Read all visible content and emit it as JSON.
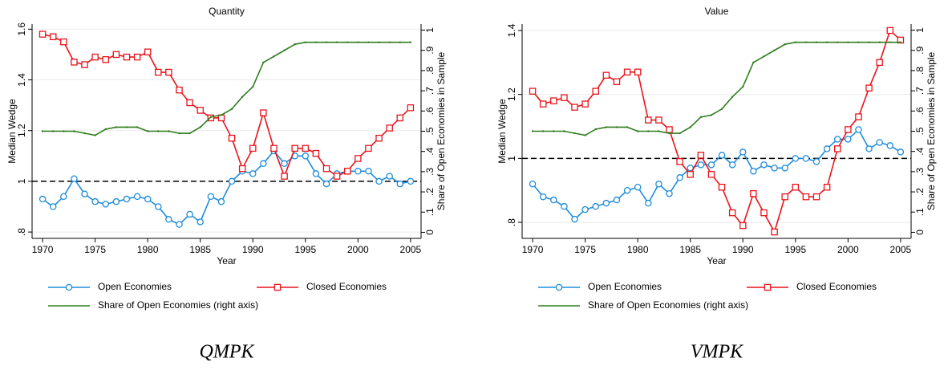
{
  "chart_data": [
    {
      "type": "line",
      "title": "Quantity",
      "caption": "QMPK",
      "xlabel": "Year",
      "ylabel": "Median Wedge",
      "y2label": "Share of Open Economies in Sample",
      "x": [
        1970,
        1971,
        1972,
        1973,
        1974,
        1975,
        1976,
        1977,
        1978,
        1979,
        1980,
        1981,
        1982,
        1983,
        1984,
        1985,
        1986,
        1987,
        1988,
        1989,
        1990,
        1991,
        1992,
        1993,
        1994,
        1995,
        1996,
        1997,
        1998,
        1999,
        2000,
        2001,
        2002,
        2003,
        2004,
        2005
      ],
      "xlim": [
        1969,
        2006
      ],
      "xticks": [
        1970,
        1975,
        1980,
        1985,
        1990,
        1995,
        2000,
        2005
      ],
      "ylim": [
        0.775,
        1.62
      ],
      "yticks": [
        {
          "value": 0.8,
          "label": ".8"
        },
        1,
        1.2,
        1.4,
        1.6
      ],
      "y2lim": [
        -0.03,
        1.03
      ],
      "y2ticks": [
        0,
        {
          "value": 0.1,
          "label": ".1"
        },
        {
          "value": 0.2,
          "label": ".2"
        },
        {
          "value": 0.3,
          "label": ".3"
        },
        {
          "value": 0.4,
          "label": ".4"
        },
        {
          "value": 0.5,
          "label": ".5"
        },
        {
          "value": 0.6,
          "label": ".6"
        },
        {
          "value": 0.7,
          "label": ".7"
        },
        {
          "value": 0.8,
          "label": ".8"
        },
        {
          "value": 0.9,
          "label": ".9"
        },
        1
      ],
      "grid": true,
      "hline": 1,
      "legend": "bottom",
      "series": [
        {
          "name": "Open Economies",
          "color": "#1f8ddc",
          "marker": "circle",
          "values": [
            0.93,
            0.9,
            0.94,
            1.01,
            0.95,
            0.92,
            0.91,
            0.92,
            0.93,
            0.94,
            0.93,
            0.9,
            0.85,
            0.83,
            0.87,
            0.84,
            0.94,
            0.92,
            1.0,
            1.04,
            1.03,
            1.07,
            1.12,
            1.07,
            1.1,
            1.1,
            1.03,
            0.99,
            1.03,
            1.04,
            1.04,
            1.04,
            1.0,
            1.02,
            0.99,
            1.0
          ]
        },
        {
          "name": "Closed Economies",
          "color": "#e8141b",
          "marker": "square",
          "values": [
            1.58,
            1.57,
            1.55,
            1.47,
            1.46,
            1.49,
            1.48,
            1.5,
            1.49,
            1.49,
            1.51,
            1.43,
            1.43,
            1.36,
            1.31,
            1.28,
            1.25,
            1.25,
            1.17,
            1.05,
            1.13,
            1.27,
            1.13,
            1.02,
            1.13,
            1.13,
            1.11,
            1.05,
            1.02,
            1.04,
            1.09,
            1.13,
            1.17,
            1.21,
            1.25,
            1.29
          ]
        },
        {
          "name": "Share of Open Economies (right axis)",
          "color": "#2f7d1f",
          "marker": "dot",
          "axis": "y2",
          "values": [
            0.5,
            0.5,
            0.5,
            0.5,
            0.49,
            0.48,
            0.51,
            0.52,
            0.52,
            0.52,
            0.5,
            0.5,
            0.5,
            0.49,
            0.49,
            0.52,
            0.57,
            0.58,
            0.61,
            0.67,
            0.72,
            0.84,
            0.87,
            0.9,
            0.93,
            0.94,
            0.94,
            0.94,
            0.94,
            0.94,
            0.94,
            0.94,
            0.94,
            0.94,
            0.94,
            0.94
          ]
        }
      ]
    },
    {
      "type": "line",
      "title": "Value",
      "caption": "VMPK",
      "xlabel": "Year",
      "ylabel": "Median Wedge",
      "y2label": "Share of Open Economies in Sample",
      "x": [
        1970,
        1971,
        1972,
        1973,
        1974,
        1975,
        1976,
        1977,
        1978,
        1979,
        1980,
        1981,
        1982,
        1983,
        1984,
        1985,
        1986,
        1987,
        1988,
        1989,
        1990,
        1991,
        1992,
        1993,
        1994,
        1995,
        1996,
        1997,
        1998,
        1999,
        2000,
        2001,
        2002,
        2003,
        2004,
        2005
      ],
      "xlim": [
        1969,
        2006
      ],
      "xticks": [
        1970,
        1975,
        1980,
        1985,
        1990,
        1995,
        2000,
        2005
      ],
      "ylim": [
        0.75,
        1.42
      ],
      "yticks": [
        {
          "value": 0.8,
          "label": ".8"
        },
        1,
        1.2,
        1.4
      ],
      "y2lim": [
        -0.03,
        1.03
      ],
      "y2ticks": [
        0,
        {
          "value": 0.1,
          "label": ".1"
        },
        {
          "value": 0.2,
          "label": ".2"
        },
        {
          "value": 0.3,
          "label": ".3"
        },
        {
          "value": 0.4,
          "label": ".4"
        },
        {
          "value": 0.5,
          "label": ".5"
        },
        {
          "value": 0.6,
          "label": ".6"
        },
        {
          "value": 0.7,
          "label": ".7"
        },
        {
          "value": 0.8,
          "label": ".8"
        },
        {
          "value": 0.9,
          "label": ".9"
        },
        1
      ],
      "grid": true,
      "hline": 1,
      "legend": "bottom",
      "series": [
        {
          "name": "Open Economies",
          "color": "#1f8ddc",
          "marker": "circle",
          "values": [
            0.92,
            0.88,
            0.87,
            0.85,
            0.81,
            0.84,
            0.85,
            0.86,
            0.87,
            0.9,
            0.91,
            0.86,
            0.92,
            0.89,
            0.94,
            0.97,
            0.98,
            0.98,
            1.01,
            0.98,
            1.02,
            0.96,
            0.98,
            0.97,
            0.97,
            1.0,
            1.0,
            0.99,
            1.03,
            1.06,
            1.06,
            1.09,
            1.03,
            1.05,
            1.04,
            1.02
          ]
        },
        {
          "name": "Closed Economies",
          "color": "#e8141b",
          "marker": "square",
          "values": [
            1.21,
            1.17,
            1.18,
            1.19,
            1.16,
            1.17,
            1.21,
            1.26,
            1.24,
            1.27,
            1.27,
            1.12,
            1.12,
            1.09,
            0.99,
            0.95,
            1.01,
            0.95,
            0.91,
            0.83,
            0.79,
            0.89,
            0.83,
            0.77,
            0.88,
            0.91,
            0.88,
            0.88,
            0.91,
            1.03,
            1.09,
            1.13,
            1.22,
            1.3,
            1.4,
            1.37
          ]
        },
        {
          "name": "Share of Open Economies (right axis)",
          "color": "#2f7d1f",
          "marker": "dot",
          "axis": "y2",
          "values": [
            0.5,
            0.5,
            0.5,
            0.5,
            0.49,
            0.48,
            0.51,
            0.52,
            0.52,
            0.52,
            0.5,
            0.5,
            0.5,
            0.49,
            0.49,
            0.52,
            0.57,
            0.58,
            0.61,
            0.67,
            0.72,
            0.84,
            0.87,
            0.9,
            0.93,
            0.94,
            0.94,
            0.94,
            0.94,
            0.94,
            0.94,
            0.94,
            0.94,
            0.94,
            0.94,
            0.94
          ]
        }
      ]
    }
  ]
}
